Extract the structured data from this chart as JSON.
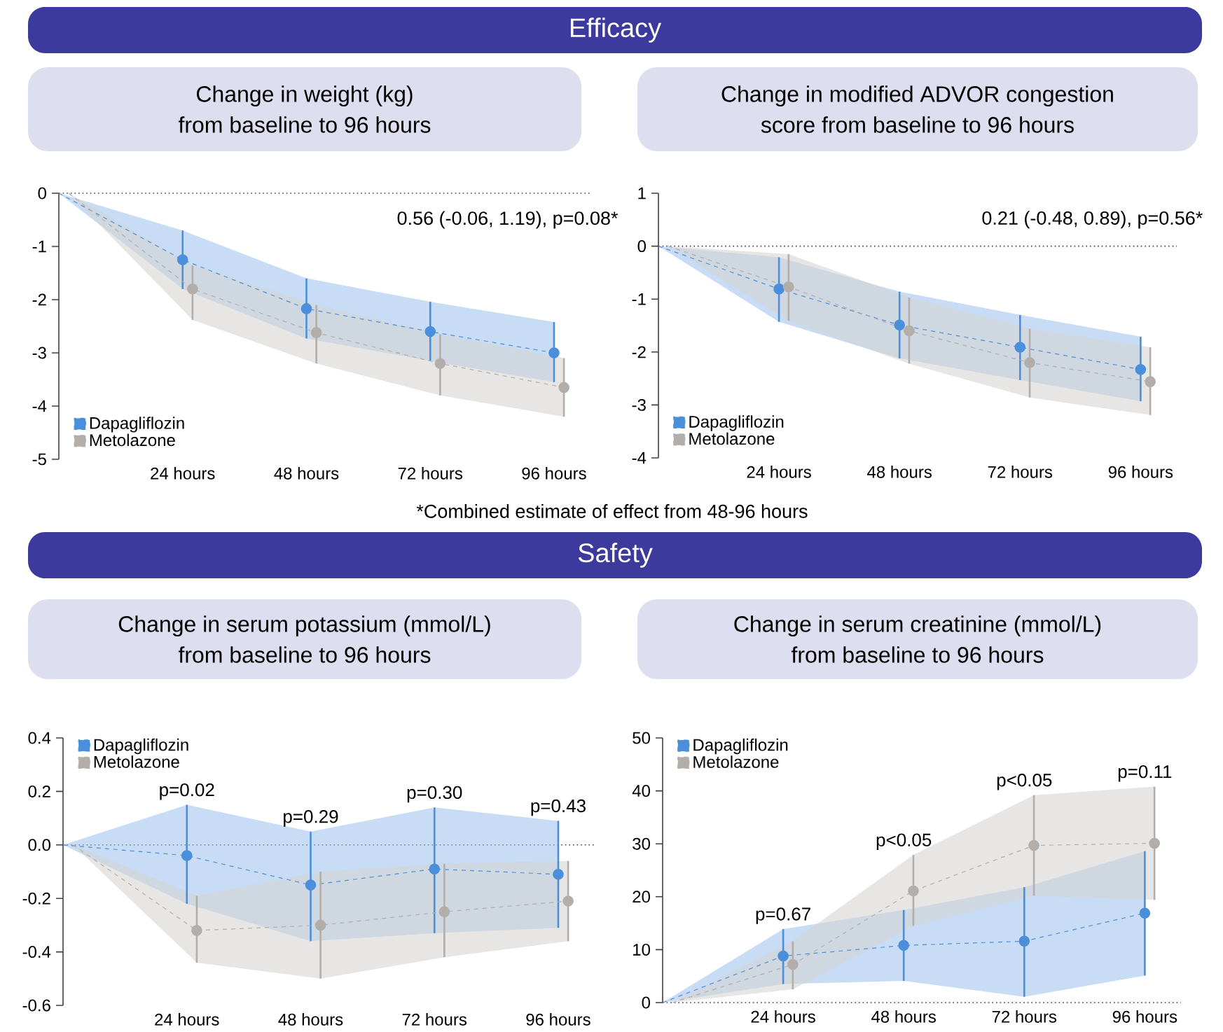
{
  "chart_data": [
    {
      "type": "line",
      "title": "Change in weight (kg)",
      "subtitle": "from baseline to 96 hours",
      "categories": [
        null,
        "24 hours",
        "48 hours",
        "72 hours",
        "96 hours"
      ],
      "series": [
        {
          "name": "Dapagliflozin",
          "color": "#4a8fdc",
          "values": [
            0,
            -1.25,
            -2.17,
            -2.6,
            -3.0
          ],
          "errors": [
            null,
            [
              -1.8,
              -0.7
            ],
            [
              -2.73,
              -1.6
            ],
            [
              -3.15,
              -2.04
            ],
            [
              -3.55,
              -2.42
            ]
          ],
          "lower": [
            0,
            -1.8,
            -2.73,
            -3.15,
            -3.55
          ],
          "upper": [
            0,
            -0.7,
            -1.6,
            -2.04,
            -2.42
          ]
        },
        {
          "name": "Metolazone",
          "color": "#b3aeaa",
          "values": [
            0,
            -1.8,
            -2.62,
            -3.2,
            -3.65
          ],
          "errors": [
            null,
            [
              -2.38,
              -1.36
            ],
            [
              -3.2,
              -2.1
            ],
            [
              -3.8,
              -2.65
            ],
            [
              -4.2,
              -3.1
            ]
          ],
          "lower": [
            0,
            -2.38,
            -3.2,
            -3.8,
            -4.2
          ],
          "upper": [
            0,
            -1.36,
            -2.1,
            -2.65,
            -3.1
          ]
        }
      ],
      "ylim": [
        -5,
        0
      ],
      "yticks": [
        -5,
        -4,
        -3,
        -2,
        -1,
        0
      ],
      "ref_lines": [
        {
          "axis": "y",
          "value": 0,
          "line_style": "dotted"
        }
      ],
      "annotations": [
        "Efficacy",
        "0.56 (-0.06, 1.19), p=0.08*",
        "*Combined estimate of effect from 48-96 hours"
      ],
      "legend": "bottom left",
      "marker": "circle",
      "line_style": "dashed"
    },
    {
      "type": "line",
      "title": "Change in modified ADVOR congestion",
      "subtitle": "score from baseline to 96 hours",
      "categories": [
        null,
        "24 hours",
        "48 hours",
        "72 hours",
        "96 hours"
      ],
      "series": [
        {
          "name": "Dapagliflozin",
          "color": "#4a8fdc",
          "values": [
            0,
            -0.81,
            -1.49,
            -1.91,
            -2.33
          ],
          "errors": [
            null,
            [
              -1.43,
              -0.21
            ],
            [
              -2.12,
              -0.86
            ],
            [
              -2.53,
              -1.3
            ],
            [
              -2.93,
              -1.71
            ]
          ],
          "lower": [
            0,
            -1.43,
            -2.12,
            -2.53,
            -2.93
          ],
          "upper": [
            0,
            -0.21,
            -0.86,
            -1.3,
            -1.71
          ]
        },
        {
          "name": "Metolazone",
          "color": "#b3aeaa",
          "values": [
            0,
            -0.77,
            -1.6,
            -2.2,
            -2.56
          ],
          "errors": [
            null,
            [
              -1.41,
              -0.15
            ],
            [
              -2.22,
              -0.97
            ],
            [
              -2.86,
              -1.56
            ],
            [
              -3.19,
              -1.91
            ]
          ],
          "lower": [
            0,
            -1.41,
            -2.22,
            -2.86,
            -3.19
          ],
          "upper": [
            0,
            -0.15,
            -0.97,
            -1.56,
            -1.91
          ]
        }
      ],
      "ylim": [
        -4,
        1
      ],
      "yticks": [
        -4,
        -3,
        -2,
        -1,
        0,
        1
      ],
      "ref_lines": [
        {
          "axis": "y",
          "value": 0,
          "line_style": "dotted"
        }
      ],
      "annotations": [
        "0.21 (-0.48, 0.89), p=0.56*"
      ],
      "legend": "bottom left",
      "marker": "circle",
      "line_style": "dashed"
    },
    {
      "type": "line",
      "title": "Change in serum potassium (mmol/L)",
      "subtitle": "from baseline to 96 hours",
      "categories": [
        null,
        "24 hours",
        "48 hours",
        "72 hours",
        "96 hours"
      ],
      "series": [
        {
          "name": "Dapagliflozin",
          "color": "#4a8fdc",
          "values": [
            0,
            -0.04,
            -0.15,
            -0.09,
            -0.11
          ],
          "errors": [
            null,
            [
              -0.22,
              0.15
            ],
            [
              -0.36,
              0.05
            ],
            [
              -0.33,
              0.14
            ],
            [
              -0.31,
              0.09
            ]
          ],
          "lower": [
            0,
            -0.22,
            -0.36,
            -0.33,
            -0.31
          ],
          "upper": [
            0,
            0.15,
            0.05,
            0.14,
            0.09
          ]
        },
        {
          "name": "Metolazone",
          "color": "#b3aeaa",
          "values": [
            0,
            -0.32,
            -0.3,
            -0.25,
            -0.21
          ],
          "errors": [
            null,
            [
              -0.44,
              -0.19
            ],
            [
              -0.5,
              -0.1
            ],
            [
              -0.42,
              -0.07
            ],
            [
              -0.36,
              -0.06
            ]
          ],
          "lower": [
            0,
            -0.44,
            -0.5,
            -0.42,
            -0.36
          ],
          "upper": [
            0,
            -0.19,
            -0.1,
            -0.07,
            -0.06
          ]
        }
      ],
      "ylim": [
        -0.6,
        0.4
      ],
      "yticks": [
        -0.6,
        -0.4,
        -0.2,
        {
          "value": 0,
          "label": "0.0"
        },
        0.2,
        0.4
      ],
      "ref_lines": [
        {
          "axis": "y",
          "value": 0,
          "line_style": "dotted"
        }
      ],
      "annotations": [
        "Safety",
        "p=0.02",
        "p=0.29",
        "p=0.30",
        "p=0.43"
      ],
      "legend": "top left",
      "marker": "circle",
      "line_style": "dashed"
    },
    {
      "type": "line",
      "title": "Change in serum creatinine (mmol/L)",
      "subtitle": "from baseline to 96 hours",
      "categories": [
        null,
        "24 hours",
        "48 hours",
        "72 hours",
        "96 hours"
      ],
      "series": [
        {
          "name": "Dapagliflozin",
          "color": "#4a8fdc",
          "values": [
            0,
            8.8,
            10.8,
            11.6,
            16.9
          ],
          "errors": [
            null,
            [
              3.5,
              13.9
            ],
            [
              4.1,
              17.5
            ],
            [
              1.1,
              21.8
            ],
            [
              5.1,
              28.6
            ]
          ],
          "lower": [
            0,
            3.5,
            4.1,
            1.1,
            5.1
          ],
          "upper": [
            0,
            13.9,
            17.5,
            21.8,
            28.6
          ]
        },
        {
          "name": "Metolazone",
          "color": "#b3aeaa",
          "values": [
            0,
            7.2,
            21.1,
            29.7,
            30.1
          ],
          "errors": [
            null,
            [
              2.5,
              11.6
            ],
            [
              14.5,
              27.9
            ],
            [
              20.2,
              39.2
            ],
            [
              19.4,
              40.8
            ]
          ],
          "lower": [
            0,
            2.5,
            14.5,
            20.2,
            19.4
          ],
          "upper": [
            0,
            11.6,
            27.9,
            39.2,
            40.8
          ]
        }
      ],
      "ylim": [
        0,
        50
      ],
      "yticks": [
        0,
        10,
        20,
        30,
        40,
        50
      ],
      "ref_lines": [
        {
          "axis": "y",
          "value": 0,
          "line_style": "dotted"
        }
      ],
      "annotations": [
        "p=0.67",
        "p<0.05",
        "p<0.05",
        "p=0.11"
      ],
      "legend": "top left",
      "marker": "circle",
      "line_style": "dashed"
    }
  ]
}
